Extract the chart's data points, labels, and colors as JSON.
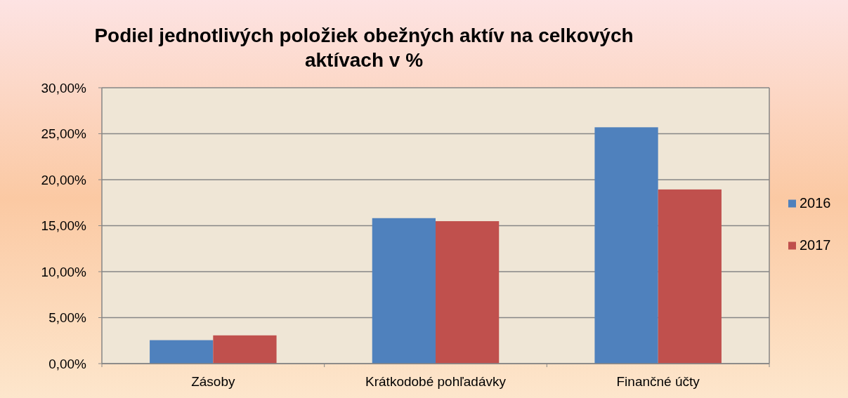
{
  "chart_data": {
    "type": "bar",
    "title": "Podiel jednotlivých položiek obežných aktív na celkových aktívach v %",
    "categories": [
      "Zásoby",
      "Krátkodobé pohľadávky",
      "Finančné účty"
    ],
    "series": [
      {
        "name": "2016",
        "color": "#4f81bd",
        "values": [
          2.55,
          15.82,
          25.7
        ]
      },
      {
        "name": "2017",
        "color": "#c0504d",
        "values": [
          3.07,
          15.49,
          18.94
        ]
      }
    ],
    "ylim": [
      0,
      30
    ],
    "yticks": [
      {
        "value": 0,
        "label": "0,00%"
      },
      {
        "value": 5,
        "label": "5,00%"
      },
      {
        "value": 10,
        "label": "10,00%"
      },
      {
        "value": 15,
        "label": "15,00%"
      },
      {
        "value": 20,
        "label": "20,00%"
      },
      {
        "value": 25,
        "label": "25,00%"
      },
      {
        "value": 30,
        "label": "30,00%"
      }
    ],
    "grid": "y",
    "legend": "right"
  }
}
